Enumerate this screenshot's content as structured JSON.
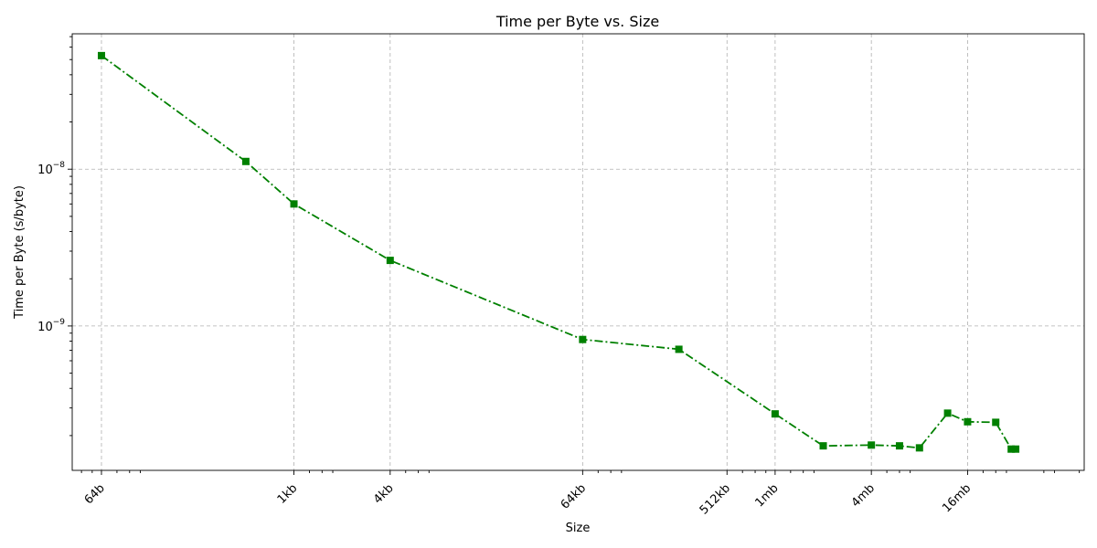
{
  "chart_data": {
    "type": "line",
    "title": "Time per Byte vs. Size",
    "xlabel": "Size",
    "ylabel": "Time per Byte (s/byte)",
    "x_scale": "log2",
    "y_scale": "log10",
    "grid": true,
    "xlim": [
      42,
      90000000
    ],
    "ylim": [
      1.2e-10,
      7.3e-08
    ],
    "x_ticks": [
      {
        "value": 64,
        "label": "64b"
      },
      {
        "value": 1024,
        "label": "1kb"
      },
      {
        "value": 4096,
        "label": "4kb"
      },
      {
        "value": 65536,
        "label": "64kb"
      },
      {
        "value": 524288,
        "label": "512kb"
      },
      {
        "value": 1048576,
        "label": "1mb"
      },
      {
        "value": 4194304,
        "label": "4mb"
      },
      {
        "value": 16777216,
        "label": "16mb"
      }
    ],
    "y_ticks": [
      {
        "value": 1e-09,
        "base": "10",
        "exp": "−9"
      },
      {
        "value": 1e-08,
        "base": "10",
        "exp": "−8"
      }
    ],
    "series": [
      {
        "color": "#008000",
        "marker": "square",
        "linestyle": "dash-dot",
        "x": [
          64,
          512,
          1024,
          4096,
          65536,
          262144,
          1048576,
          2097152,
          4194304,
          6291456,
          8388608,
          12582912,
          16777216,
          25165824,
          31457280,
          33554432
        ],
        "y": [
          5.3e-08,
          1.12e-08,
          6e-09,
          2.62e-09,
          8.2e-10,
          7.1e-10,
          2.75e-10,
          1.72e-10,
          1.74e-10,
          1.72e-10,
          1.67e-10,
          2.78e-10,
          2.45e-10,
          2.43e-10,
          1.64e-10,
          1.64e-10
        ]
      }
    ]
  }
}
